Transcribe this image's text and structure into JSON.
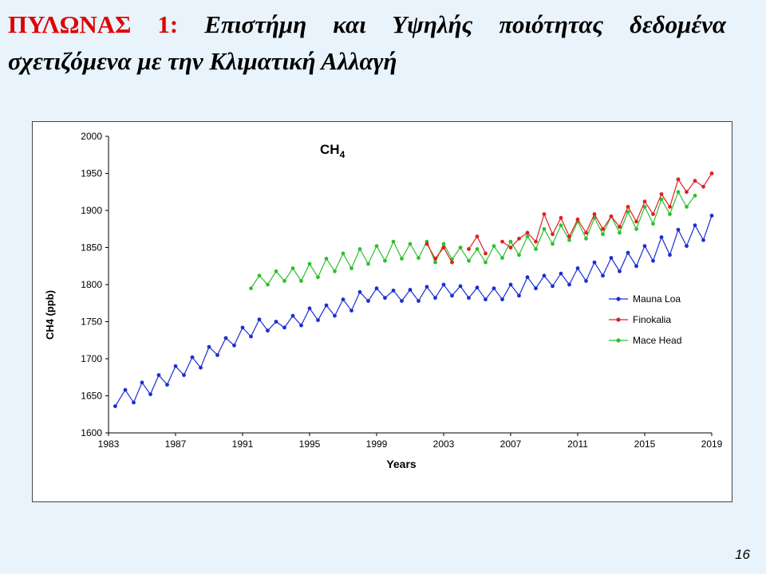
{
  "slide": {
    "title_red": "ΠΥΛΩΝΑΣ 1:",
    "title_rest": "Επιστήμη και Υψηλής ποιότητας δεδομένα σχετιζόμενα με την Κλιματική Αλλαγή",
    "page_number": "16"
  },
  "chart_data": {
    "type": "line",
    "title": "CH4",
    "xlabel": "Years",
    "ylabel": "CH4 (ppb)",
    "xlim": [
      1983,
      2019
    ],
    "ylim": [
      1600,
      2000
    ],
    "x_ticks": [
      1983,
      1987,
      1991,
      1995,
      1999,
      2003,
      2007,
      2011,
      2015,
      2019
    ],
    "y_ticks": [
      1600,
      1650,
      1700,
      1750,
      1800,
      1850,
      1900,
      1950,
      2000
    ],
    "grid": false,
    "legend_position": "right",
    "series": [
      {
        "name": "Mauna Loa",
        "color": "#1a2fd0",
        "x": [
          1983.4,
          1984.0,
          1984.5,
          1985.0,
          1985.5,
          1986.0,
          1986.5,
          1987.0,
          1987.5,
          1988.0,
          1988.5,
          1989.0,
          1989.5,
          1990.0,
          1990.5,
          1991.0,
          1991.5,
          1992.0,
          1992.5,
          1993.0,
          1993.5,
          1994.0,
          1994.5,
          1995.0,
          1995.5,
          1996.0,
          1996.5,
          1997.0,
          1997.5,
          1998.0,
          1998.5,
          1999.0,
          1999.5,
          2000.0,
          2000.5,
          2001.0,
          2001.5,
          2002.0,
          2002.5,
          2003.0,
          2003.5,
          2004.0,
          2004.5,
          2005.0,
          2005.5,
          2006.0,
          2006.5,
          2007.0,
          2007.5,
          2008.0,
          2008.5,
          2009.0,
          2009.5,
          2010.0,
          2010.5,
          2011.0,
          2011.5,
          2012.0,
          2012.5,
          2013.0,
          2013.5,
          2014.0,
          2014.5,
          2015.0,
          2015.5,
          2016.0,
          2016.5,
          2017.0,
          2017.5,
          2018.0,
          2018.5,
          2019.0
        ],
        "values": [
          1636,
          1658,
          1641,
          1668,
          1652,
          1678,
          1665,
          1690,
          1678,
          1702,
          1688,
          1716,
          1705,
          1728,
          1718,
          1742,
          1730,
          1753,
          1738,
          1750,
          1742,
          1758,
          1745,
          1768,
          1752,
          1772,
          1758,
          1780,
          1765,
          1790,
          1778,
          1795,
          1782,
          1792,
          1778,
          1793,
          1778,
          1797,
          1782,
          1800,
          1785,
          1798,
          1782,
          1796,
          1780,
          1795,
          1780,
          1800,
          1785,
          1810,
          1795,
          1812,
          1798,
          1815,
          1800,
          1822,
          1805,
          1830,
          1812,
          1836,
          1818,
          1843,
          1825,
          1852,
          1832,
          1864,
          1840,
          1874,
          1852,
          1880,
          1860,
          1893
        ]
      },
      {
        "name": "Finokalia",
        "color": "#e02020",
        "x": [
          2002.0,
          2002.5,
          2003.0,
          2003.5,
          2004.5,
          2005.0,
          2005.5,
          2006.5,
          2007.0,
          2007.5,
          2008.0,
          2008.5,
          2009.0,
          2009.5,
          2010.0,
          2010.5,
          2011.0,
          2011.5,
          2012.0,
          2012.5,
          2013.0,
          2013.5,
          2014.0,
          2014.5,
          2015.0,
          2015.5,
          2016.0,
          2016.5,
          2017.0,
          2017.5,
          2018.0,
          2018.5,
          2019.0
        ],
        "values": [
          1855,
          1835,
          1850,
          1830,
          1848,
          1865,
          1842,
          1858,
          1850,
          1862,
          1870,
          1858,
          1895,
          1868,
          1890,
          1865,
          1888,
          1870,
          1895,
          1875,
          1892,
          1878,
          1905,
          1885,
          1912,
          1895,
          1922,
          1905,
          1942,
          1925,
          1940,
          1932,
          1950
        ]
      },
      {
        "name": "Mace Head",
        "color": "#2ec02e",
        "x": [
          1991.5,
          1992.0,
          1992.5,
          1993.0,
          1993.5,
          1994.0,
          1994.5,
          1995.0,
          1995.5,
          1996.0,
          1996.5,
          1997.0,
          1997.5,
          1998.0,
          1998.5,
          1999.0,
          1999.5,
          2000.0,
          2000.5,
          2001.0,
          2001.5,
          2002.0,
          2002.5,
          2003.0,
          2003.5,
          2004.0,
          2004.5,
          2005.0,
          2005.5,
          2006.0,
          2006.5,
          2007.0,
          2007.5,
          2008.0,
          2008.5,
          2009.0,
          2009.5,
          2010.0,
          2010.5,
          2011.0,
          2011.5,
          2012.0,
          2012.5,
          2013.0,
          2013.5,
          2014.0,
          2014.5,
          2015.0,
          2015.5,
          2016.0,
          2016.5,
          2017.0,
          2017.5,
          2018.0
        ],
        "values": [
          1795,
          1812,
          1800,
          1818,
          1805,
          1822,
          1805,
          1828,
          1810,
          1835,
          1818,
          1842,
          1822,
          1848,
          1828,
          1852,
          1832,
          1858,
          1835,
          1855,
          1836,
          1858,
          1830,
          1855,
          1834,
          1850,
          1832,
          1848,
          1830,
          1852,
          1836,
          1858,
          1840,
          1865,
          1848,
          1875,
          1855,
          1880,
          1860,
          1885,
          1862,
          1890,
          1868,
          1892,
          1870,
          1898,
          1875,
          1905,
          1882,
          1915,
          1895,
          1925,
          1905,
          1920
        ]
      }
    ]
  }
}
